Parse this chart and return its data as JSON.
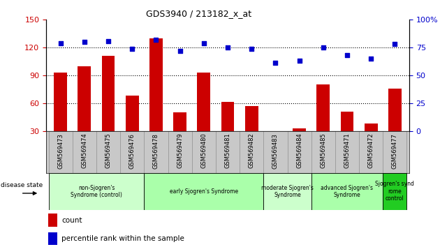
{
  "title": "GDS3940 / 213182_x_at",
  "samples": [
    "GSM569473",
    "GSM569474",
    "GSM569475",
    "GSM569476",
    "GSM569478",
    "GSM569479",
    "GSM569480",
    "GSM569481",
    "GSM569482",
    "GSM569483",
    "GSM569484",
    "GSM569485",
    "GSM569471",
    "GSM569472",
    "GSM569477"
  ],
  "counts": [
    93,
    100,
    111,
    68,
    130,
    50,
    93,
    61,
    57,
    30,
    33,
    80,
    51,
    38,
    76
  ],
  "percentiles": [
    79,
    80,
    81,
    74,
    82,
    72,
    79,
    75,
    74,
    61,
    63,
    75,
    68,
    65,
    78
  ],
  "ylim_left": [
    30,
    150
  ],
  "ylim_right": [
    0,
    100
  ],
  "yticks_left": [
    30,
    60,
    90,
    120,
    150
  ],
  "yticks_right": [
    0,
    25,
    50,
    75,
    100
  ],
  "ytick_right_labels": [
    "0",
    "25",
    "50",
    "75",
    "100%"
  ],
  "bar_color": "#cc0000",
  "dot_color": "#0000cc",
  "groups": [
    {
      "label": "non-Sjogren's\nSyndrome (control)",
      "start": 0,
      "end": 4,
      "color": "#ccffcc"
    },
    {
      "label": "early Sjogren's Syndrome",
      "start": 4,
      "end": 9,
      "color": "#aaffaa"
    },
    {
      "label": "moderate Sjogren's\nSyndrome",
      "start": 9,
      "end": 11,
      "color": "#ccffcc"
    },
    {
      "label": "advanced Sjogren's\nSyndrome",
      "start": 11,
      "end": 14,
      "color": "#aaffaa"
    },
    {
      "label": "Sjogren's synd\nrome\ncontrol",
      "start": 14,
      "end": 15,
      "color": "#22cc22"
    }
  ],
  "xlabel_disease": "disease state",
  "legend_count": "count",
  "legend_percentile": "percentile rank within the sample",
  "tick_label_bg": "#c8c8c8",
  "bg_white": "#ffffff"
}
